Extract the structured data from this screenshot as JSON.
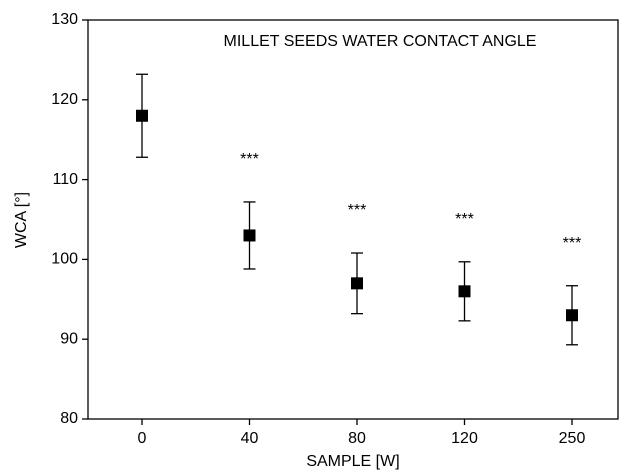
{
  "chart_data": {
    "type": "errorbar",
    "title": "MILLET SEEDS WATER CONTACT ANGLE",
    "x_label": "SAMPLE [W]",
    "y_label": "WCA [°]",
    "categories": [
      "0",
      "40",
      "80",
      "120",
      "250"
    ],
    "values": [
      118,
      103,
      97,
      96,
      93
    ],
    "errors": [
      5.2,
      4.2,
      3.8,
      3.7,
      3.7
    ],
    "significance_labels": [
      null,
      "***",
      "***",
      "***",
      "***"
    ],
    "color": "#000000",
    "ylim": [
      80,
      130
    ],
    "yticks": [
      80,
      90,
      100,
      110,
      120,
      130
    ],
    "grid": false
  }
}
